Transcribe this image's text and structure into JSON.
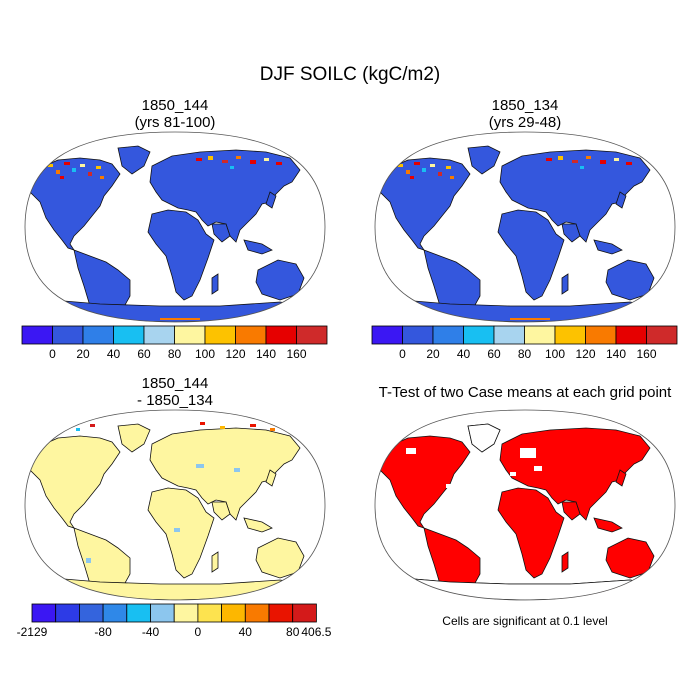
{
  "main_title": "DJF SOILC (kgC/m2)",
  "panels": [
    {
      "title_line1": "1850_144",
      "title_line2": "(yrs 81-100)"
    },
    {
      "title_line1": "1850_134",
      "title_line2": "(yrs 29-48)"
    },
    {
      "title_line1": "1850_144",
      "title_line2": "- 1850_134"
    },
    {
      "title_line1": "T-Test of two Case means at each grid point",
      "title_line2": ""
    }
  ],
  "colorbars": {
    "case": {
      "colors": [
        "#3b17f3",
        "#3457dd",
        "#2f7fe8",
        "#18bff2",
        "#a8d4ef",
        "#fef6a0",
        "#fdc200",
        "#f97a00",
        "#e60000",
        "#cf2a2a"
      ],
      "tick_labels": [
        "0",
        "20",
        "40",
        "60",
        "80",
        "100",
        "120",
        "140",
        "160"
      ]
    },
    "diff": {
      "colors": [
        "#3b17f3",
        "#2d3be6",
        "#3464dd",
        "#2f88e8",
        "#18bff2",
        "#8cc6ee",
        "#fef6a0",
        "#fde34f",
        "#fdb700",
        "#f97a00",
        "#e91400",
        "#d41a1a"
      ],
      "tick_labels": [
        "-2129",
        "-80",
        "-40",
        "0",
        "40",
        "80",
        "406.5"
      ]
    }
  },
  "significance_note": "Cells are significant at 0.1 level",
  "map_colors": {
    "case_land": "#3457dd",
    "diff_land": "#fef6a0",
    "ttest_land": "#ff0000",
    "coast": "#111111",
    "ocean": "#ffffff"
  }
}
